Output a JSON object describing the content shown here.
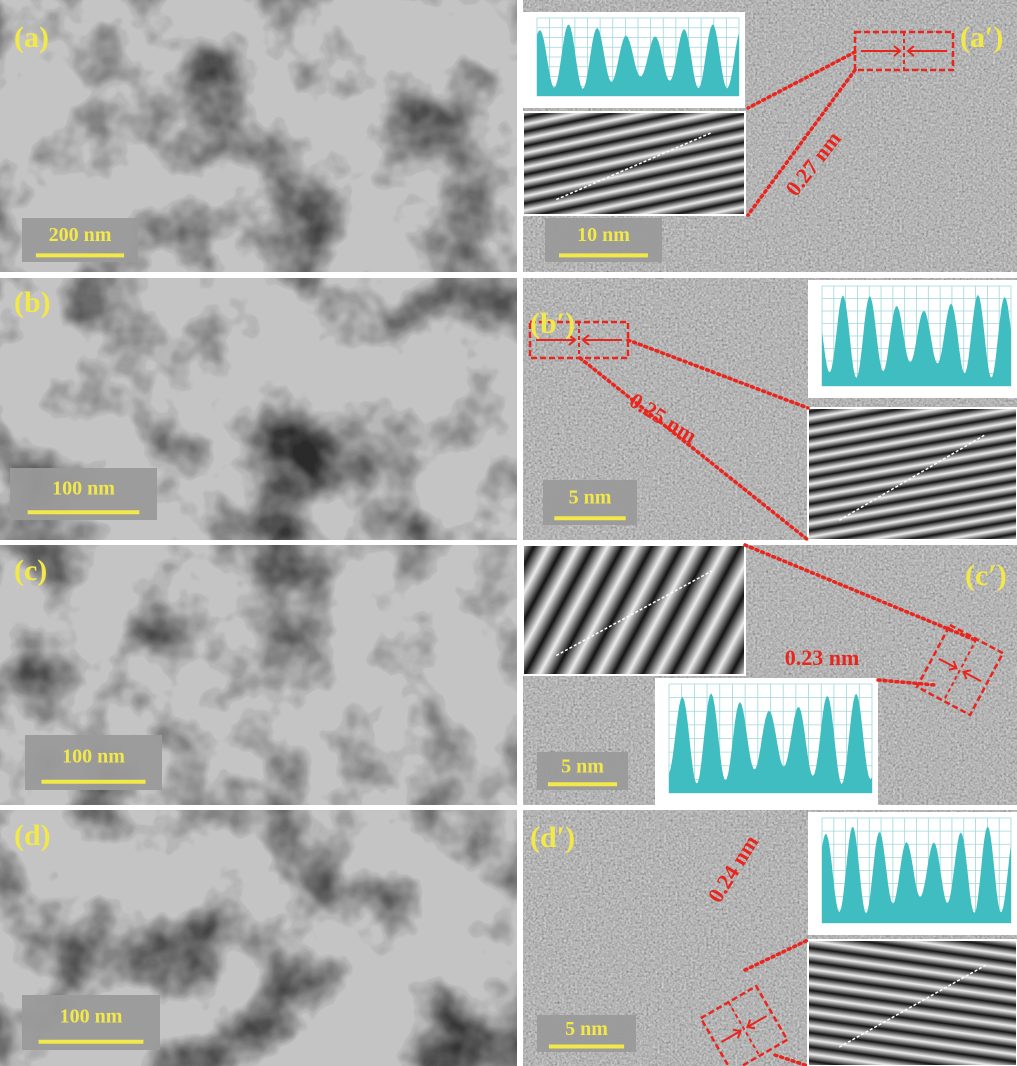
{
  "panels": [
    {
      "label": "(a)",
      "scale_bar": "200 nm"
    },
    {
      "label": "(a′)",
      "scale_bar": "10 nm",
      "d_spacing": "0.27 nm"
    },
    {
      "label": "(b)",
      "scale_bar": "100 nm"
    },
    {
      "label": "(b′)",
      "scale_bar": "5 nm",
      "d_spacing": "0.25 nm"
    },
    {
      "label": "(c)",
      "scale_bar": "100 nm"
    },
    {
      "label": "(c′)",
      "scale_bar": "5 nm",
      "d_spacing": "0.23 nm"
    },
    {
      "label": "(d)",
      "scale_bar": "100 nm"
    },
    {
      "label": "(d′)",
      "scale_bar": "5 nm",
      "d_spacing": "0.24 nm"
    }
  ]
}
